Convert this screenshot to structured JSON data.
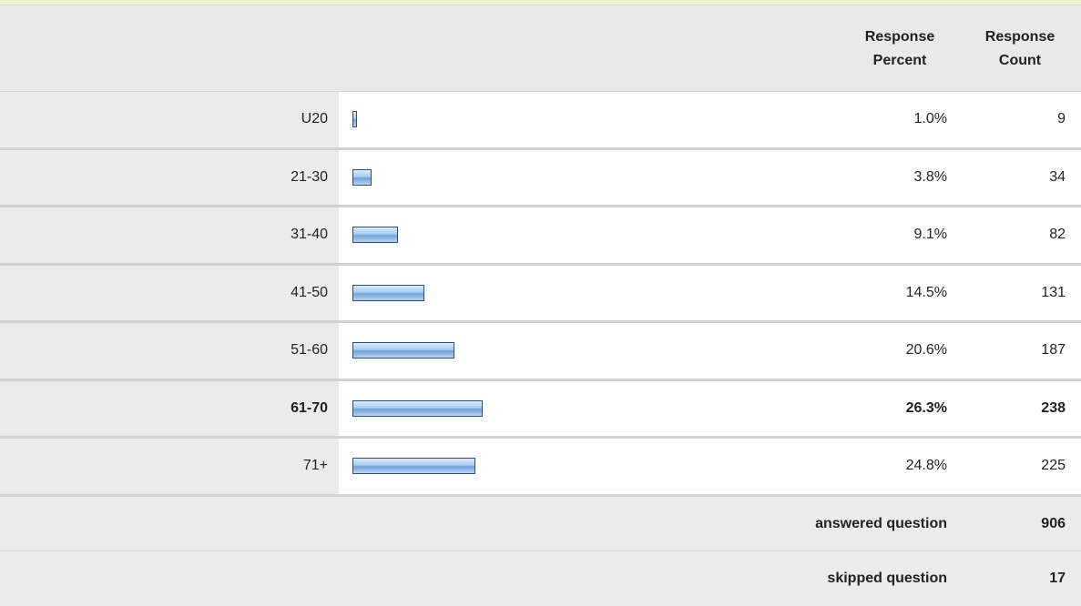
{
  "table": {
    "headers": [
      "Response Percent",
      "Response Count"
    ],
    "rows": [
      {
        "label": "U20",
        "percent": {
          "value": 1.0,
          "label": "1.0%"
        },
        "count": 9
      },
      {
        "label": "21-30",
        "percent": {
          "value": 3.8,
          "label": "3.8%"
        },
        "count": 34
      },
      {
        "label": "31-40",
        "percent": {
          "value": 9.1,
          "label": "9.1%"
        },
        "count": 82
      },
      {
        "label": "41-50",
        "percent": {
          "value": 14.5,
          "label": "14.5%"
        },
        "count": 131
      },
      {
        "label": "51-60",
        "percent": {
          "value": 20.6,
          "label": "20.6%"
        },
        "count": 187
      },
      {
        "label": "61-70",
        "percent": {
          "value": 26.3,
          "label": "26.3%"
        },
        "count": 238,
        "bold": true
      },
      {
        "label": "71+",
        "percent": {
          "value": 24.8,
          "label": "24.8%"
        },
        "count": 225
      }
    ],
    "summary": [
      {
        "label": "answered question",
        "count": 906
      },
      {
        "label": "skipped question",
        "count": 17
      }
    ]
  }
}
